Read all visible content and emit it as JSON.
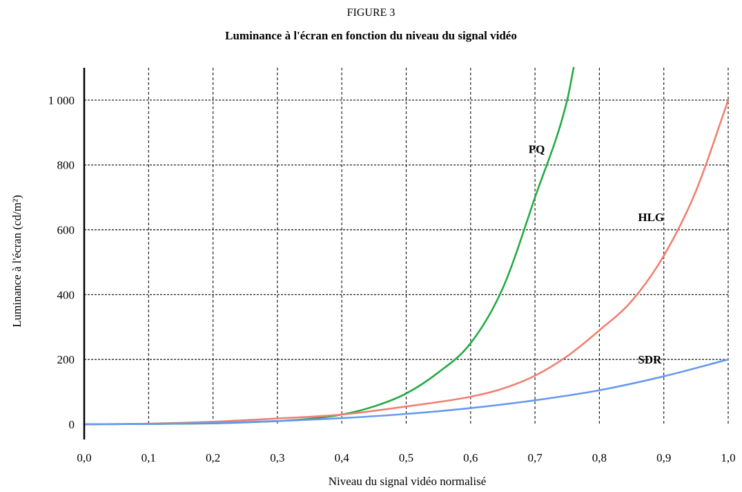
{
  "figure_label": "FIGURE 3",
  "chart_data": {
    "type": "line",
    "title": "Luminance à l'écran en fonction du niveau du signal vidéo",
    "xlabel": "Niveau du signal vidéo normalisé",
    "ylabel": "Luminance à l'écran (cd/m²)",
    "xlim": [
      0,
      1
    ],
    "ylim": [
      0,
      1100
    ],
    "grid": true,
    "x_ticks": [
      "0,0",
      "0,1",
      "0,2",
      "0,3",
      "0,4",
      "0,5",
      "0,6",
      "0,7",
      "0,8",
      "0,9",
      "1,0"
    ],
    "y_ticks": [
      {
        "value": 0,
        "label": "0"
      },
      {
        "value": 200,
        "label": "200"
      },
      {
        "value": 400,
        "label": "400"
      },
      {
        "value": 600,
        "label": "600"
      },
      {
        "value": 800,
        "label": "800"
      },
      {
        "value": 1000,
        "label": "1 000"
      }
    ],
    "series": [
      {
        "name": "PQ",
        "color": "#22aa44",
        "x": [
          0.0,
          0.1,
          0.2,
          0.25,
          0.3,
          0.35,
          0.4,
          0.45,
          0.5,
          0.55,
          0.6,
          0.65,
          0.7,
          0.75,
          0.76
        ],
        "y": [
          0,
          1,
          3,
          6,
          10,
          17,
          30,
          55,
          95,
          160,
          250,
          420,
          700,
          1000,
          1100
        ]
      },
      {
        "name": "HLG",
        "color": "#f08070",
        "x": [
          0.0,
          0.1,
          0.2,
          0.3,
          0.4,
          0.5,
          0.6,
          0.65,
          0.7,
          0.75,
          0.8,
          0.85,
          0.9,
          0.95,
          1.0
        ],
        "y": [
          0,
          2,
          8,
          18,
          30,
          55,
          85,
          110,
          150,
          210,
          290,
          380,
          520,
          720,
          1000
        ]
      },
      {
        "name": "SDR",
        "color": "#6699ee",
        "x": [
          0.0,
          0.1,
          0.2,
          0.3,
          0.4,
          0.5,
          0.6,
          0.7,
          0.8,
          0.9,
          1.0
        ],
        "y": [
          0,
          1,
          4,
          10,
          19,
          32,
          50,
          74,
          105,
          148,
          200
        ]
      }
    ],
    "annotations": [
      {
        "text": "PQ",
        "x": 0.69,
        "y": 850
      },
      {
        "text": "HLG",
        "x": 0.86,
        "y": 640
      },
      {
        "text": "SDR",
        "x": 0.86,
        "y": 200
      }
    ]
  }
}
